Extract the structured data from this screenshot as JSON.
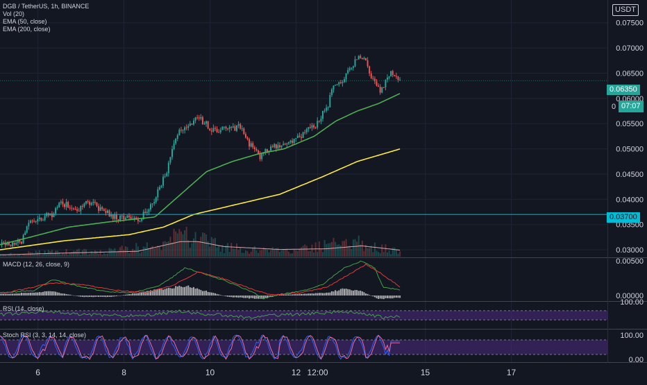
{
  "symbol_legend": {
    "title": "DGB / TetherUS, 1h, BINANCE",
    "studies": [
      "Vol (20)",
      "EMA (50, close)",
      "EMA (200, close)"
    ]
  },
  "currency_label": "USDT",
  "price_tags": {
    "last_price": "0.06350",
    "countdown_prefix": "0",
    "countdown": "07:07",
    "level": "0.03700"
  },
  "colors": {
    "background": "#131722",
    "up": "#26a69a",
    "down": "#ef5350",
    "ema50": "#4caf50",
    "ema200": "#ffeb3b",
    "level_line": "#00bcd4",
    "macd": "#43a047",
    "macd_signal": "#e53935",
    "histogram": "#cfcfcf",
    "rsi_line": "#43a047",
    "stoch_k": "#2962ff",
    "stoch_d": "#ef6c9a",
    "band_fill": "#4a2a80"
  },
  "chart_data": [
    {
      "type": "candlestick",
      "title": "DGB / TetherUS, 1h, BINANCE",
      "x_ticks": [
        {
          "label": "6",
          "t": 0.88
        },
        {
          "label": "8",
          "t": 2.88
        },
        {
          "label": "10",
          "t": 4.88
        },
        {
          "label": "12",
          "t": 6.88
        },
        {
          "label": "12:00",
          "t": 7.38
        },
        {
          "label": "15",
          "t": 9.88
        },
        {
          "label": "17",
          "t": 11.88
        }
      ],
      "ylim": [
        0.0285,
        0.0795
      ],
      "y_ticks": [
        "0.03000",
        "0.03500",
        "0.04000",
        "0.04500",
        "0.05000",
        "0.05500",
        "0.06000",
        "0.06500",
        "0.07000",
        "0.07500"
      ],
      "candles_key": "ohlc_anchor_path",
      "ohlc_anchor_path": [
        [
          0,
          0.031
        ],
        [
          0.5,
          0.0315
        ],
        [
          0.7,
          0.0355
        ],
        [
          1.2,
          0.037
        ],
        [
          1.4,
          0.0395
        ],
        [
          1.8,
          0.038
        ],
        [
          2.1,
          0.0395
        ],
        [
          2.6,
          0.0365
        ],
        [
          3.2,
          0.036
        ],
        [
          3.4,
          0.0375
        ],
        [
          3.6,
          0.04
        ],
        [
          3.9,
          0.046
        ],
        [
          4.1,
          0.053
        ],
        [
          4.4,
          0.0545
        ],
        [
          4.6,
          0.056
        ],
        [
          5.0,
          0.0535
        ],
        [
          5.6,
          0.0545
        ],
        [
          5.8,
          0.051
        ],
        [
          6.05,
          0.0485
        ],
        [
          6.3,
          0.0505
        ],
        [
          6.6,
          0.051
        ],
        [
          7.0,
          0.0525
        ],
        [
          7.3,
          0.0545
        ],
        [
          7.6,
          0.058
        ],
        [
          7.75,
          0.063
        ],
        [
          8.0,
          0.064
        ],
        [
          8.3,
          0.068
        ],
        [
          8.45,
          0.068
        ],
        [
          8.65,
          0.064
        ],
        [
          8.85,
          0.061
        ],
        [
          9.05,
          0.065
        ],
        [
          9.3,
          0.0635
        ]
      ],
      "overlays": [
        {
          "name": "EMA (50, close)",
          "points": [
            [
              0,
              0.031
            ],
            [
              0.7,
              0.0325
            ],
            [
              1.6,
              0.0345
            ],
            [
              2.5,
              0.0355
            ],
            [
              3.6,
              0.0365
            ],
            [
              4.2,
              0.041
            ],
            [
              4.8,
              0.0455
            ],
            [
              5.4,
              0.0475
            ],
            [
              6.0,
              0.049
            ],
            [
              6.6,
              0.05
            ],
            [
              7.3,
              0.0525
            ],
            [
              7.8,
              0.0555
            ],
            [
              8.3,
              0.0575
            ],
            [
              8.8,
              0.059
            ],
            [
              9.3,
              0.061
            ]
          ]
        },
        {
          "name": "EMA (200, close)",
          "points": [
            [
              0,
              0.03
            ],
            [
              1.5,
              0.0318
            ],
            [
              3.0,
              0.033
            ],
            [
              3.8,
              0.0345
            ],
            [
              4.5,
              0.037
            ],
            [
              5.5,
              0.039
            ],
            [
              6.5,
              0.041
            ],
            [
              7.5,
              0.0445
            ],
            [
              8.3,
              0.0475
            ],
            [
              9.3,
              0.05
            ]
          ]
        }
      ],
      "horizontal_levels": [
        {
          "value": 0.037
        }
      ]
    },
    {
      "type": "bar",
      "title": "Vol (20)",
      "profile": [
        [
          0,
          0.05
        ],
        [
          1.0,
          0.12
        ],
        [
          2.5,
          0.15
        ],
        [
          3.6,
          0.28
        ],
        [
          4.2,
          0.55
        ],
        [
          4.6,
          0.45
        ],
        [
          5.2,
          0.25
        ],
        [
          6.5,
          0.15
        ],
        [
          7.6,
          0.3
        ],
        [
          8.3,
          0.38
        ],
        [
          8.8,
          0.26
        ],
        [
          9.3,
          0.12
        ]
      ],
      "volume_ma": [
        [
          0,
          0.05
        ],
        [
          1.5,
          0.1
        ],
        [
          3.2,
          0.15
        ],
        [
          4.2,
          0.42
        ],
        [
          4.6,
          0.42
        ],
        [
          5.2,
          0.28
        ],
        [
          6.5,
          0.2
        ],
        [
          7.6,
          0.22
        ],
        [
          8.4,
          0.3
        ],
        [
          9.3,
          0.18
        ]
      ]
    },
    {
      "type": "line",
      "title": "MACD (12, 26, close, 9)",
      "ylim": [
        -0.0008,
        0.0054
      ],
      "y_ticks": [
        "0.00500",
        "0.00000"
      ],
      "macd": [
        [
          0,
          0.0004
        ],
        [
          0.8,
          0.0007
        ],
        [
          1.2,
          0.0023
        ],
        [
          1.8,
          0.0014
        ],
        [
          2.4,
          0.0006
        ],
        [
          3.1,
          0.0004
        ],
        [
          3.7,
          0.0014
        ],
        [
          4.0,
          0.0026
        ],
        [
          4.3,
          0.004
        ],
        [
          4.6,
          0.0034
        ],
        [
          5.2,
          0.0022
        ],
        [
          5.9,
          0.0004
        ],
        [
          6.1,
          -0.0005
        ],
        [
          6.5,
          0.0002
        ],
        [
          7.0,
          0.0006
        ],
        [
          7.5,
          0.0016
        ],
        [
          8.0,
          0.004
        ],
        [
          8.4,
          0.005
        ],
        [
          8.7,
          0.004
        ],
        [
          8.9,
          0.0012
        ],
        [
          9.3,
          0.0008
        ]
      ],
      "signal": [
        [
          0,
          0.0002
        ],
        [
          1.2,
          0.0018
        ],
        [
          1.9,
          0.0016
        ],
        [
          2.6,
          0.0008
        ],
        [
          3.4,
          0.0004
        ],
        [
          4.0,
          0.0014
        ],
        [
          4.6,
          0.0034
        ],
        [
          5.2,
          0.0024
        ],
        [
          5.9,
          0.0008
        ],
        [
          6.3,
          0.0001
        ],
        [
          7.0,
          0.0004
        ],
        [
          7.6,
          0.0012
        ],
        [
          8.1,
          0.003
        ],
        [
          8.5,
          0.0045
        ],
        [
          8.9,
          0.003
        ],
        [
          9.3,
          0.0012
        ]
      ],
      "histogram_profile": [
        [
          0,
          0.0002
        ],
        [
          1.2,
          0.0006
        ],
        [
          1.9,
          -0.0002
        ],
        [
          2.6,
          -0.0002
        ],
        [
          3.7,
          0.0009
        ],
        [
          4.3,
          0.0014
        ],
        [
          4.8,
          0.0006
        ],
        [
          5.3,
          -0.0002
        ],
        [
          6.1,
          -0.0005
        ],
        [
          6.5,
          0.0001
        ],
        [
          7.6,
          0.0004
        ],
        [
          8.0,
          0.001
        ],
        [
          8.4,
          0.0006
        ],
        [
          8.8,
          -0.0005
        ],
        [
          9.3,
          -0.0003
        ]
      ]
    },
    {
      "type": "line",
      "title": "RSI (14, close)",
      "ylim": [
        0,
        100
      ],
      "y_ticks": [
        "100.00"
      ],
      "band": [
        30,
        70
      ],
      "anchors": [
        [
          0,
          52
        ],
        [
          0.5,
          60
        ],
        [
          1.2,
          66
        ],
        [
          1.8,
          55
        ],
        [
          2.5,
          50
        ],
        [
          3.2,
          48
        ],
        [
          3.8,
          58
        ],
        [
          4.2,
          68
        ],
        [
          4.6,
          58
        ],
        [
          5.2,
          50
        ],
        [
          5.9,
          38
        ],
        [
          6.3,
          50
        ],
        [
          6.9,
          54
        ],
        [
          7.5,
          60
        ],
        [
          7.9,
          65
        ],
        [
          8.3,
          62
        ],
        [
          8.6,
          52
        ],
        [
          8.9,
          40
        ],
        [
          9.3,
          46
        ]
      ]
    },
    {
      "type": "line",
      "title": "Stoch RSI (3, 3, 14, 14, close)",
      "ylim": [
        0,
        100
      ],
      "y_ticks": [
        "100.00",
        "0.00"
      ],
      "band": [
        20,
        80
      ],
      "oscillation": {
        "period_days": 0.55,
        "amplitude": 45,
        "center": 50,
        "ending_k": 75,
        "ending_d": 68
      }
    }
  ]
}
